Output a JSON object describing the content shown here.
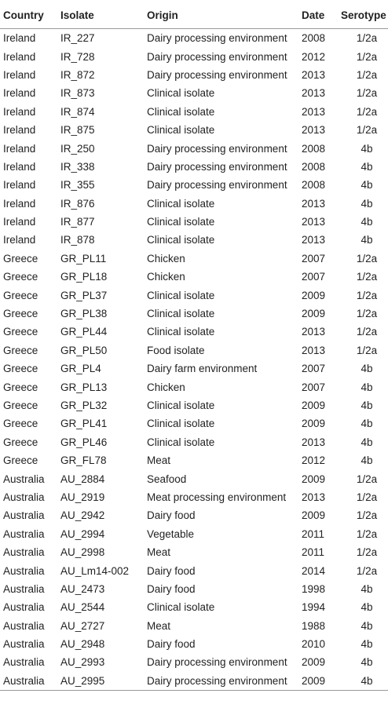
{
  "table": {
    "headers": [
      "Country",
      "Isolate",
      "Origin",
      "Date",
      "Serotype"
    ],
    "rows": [
      [
        "Ireland",
        "IR_227",
        "Dairy processing environment",
        "2008",
        "1/2a"
      ],
      [
        "Ireland",
        "IR_728",
        "Dairy processing environment",
        "2012",
        "1/2a"
      ],
      [
        "Ireland",
        "IR_872",
        "Dairy processing environment",
        "2013",
        "1/2a"
      ],
      [
        "Ireland",
        "IR_873",
        "Clinical isolate",
        "2013",
        "1/2a"
      ],
      [
        "Ireland",
        "IR_874",
        "Clinical isolate",
        "2013",
        "1/2a"
      ],
      [
        "Ireland",
        "IR_875",
        "Clinical isolate",
        "2013",
        "1/2a"
      ],
      [
        "Ireland",
        "IR_250",
        "Dairy processing environment",
        "2008",
        "4b"
      ],
      [
        "Ireland",
        "IR_338",
        "Dairy processing environment",
        "2008",
        "4b"
      ],
      [
        "Ireland",
        "IR_355",
        "Dairy processing environment",
        "2008",
        "4b"
      ],
      [
        "Ireland",
        "IR_876",
        "Clinical isolate",
        "2013",
        "4b"
      ],
      [
        "Ireland",
        "IR_877",
        "Clinical isolate",
        "2013",
        "4b"
      ],
      [
        "Ireland",
        "IR_878",
        "Clinical isolate",
        "2013",
        "4b"
      ],
      [
        "Greece",
        "GR_PL11",
        "Chicken",
        "2007",
        "1/2a"
      ],
      [
        "Greece",
        "GR_PL18",
        "Chicken",
        "2007",
        "1/2a"
      ],
      [
        "Greece",
        "GR_PL37",
        "Clinical isolate",
        "2009",
        "1/2a"
      ],
      [
        "Greece",
        "GR_PL38",
        "Clinical isolate",
        "2009",
        "1/2a"
      ],
      [
        "Greece",
        "GR_PL44",
        "Clinical isolate",
        "2013",
        "1/2a"
      ],
      [
        "Greece",
        "GR_PL50",
        "Food isolate",
        "2013",
        "1/2a"
      ],
      [
        "Greece",
        "GR_PL4",
        "Dairy farm environment",
        "2007",
        "4b"
      ],
      [
        "Greece",
        "GR_PL13",
        "Chicken",
        "2007",
        "4b"
      ],
      [
        "Greece",
        "GR_PL32",
        "Clinical isolate",
        "2009",
        "4b"
      ],
      [
        "Greece",
        "GR_PL41",
        "Clinical isolate",
        "2009",
        "4b"
      ],
      [
        "Greece",
        "GR_PL46",
        "Clinical isolate",
        "2013",
        "4b"
      ],
      [
        "Greece",
        "GR_FL78",
        "Meat",
        "2012",
        "4b"
      ],
      [
        "Australia",
        "AU_2884",
        "Seafood",
        "2009",
        "1/2a"
      ],
      [
        "Australia",
        "AU_2919",
        "Meat processing environment",
        "2013",
        "1/2a"
      ],
      [
        "Australia",
        "AU_2942",
        "Dairy food",
        "2009",
        "1/2a"
      ],
      [
        "Australia",
        "AU_2994",
        "Vegetable",
        "2011",
        "1/2a"
      ],
      [
        "Australia",
        "AU_2998",
        "Meat",
        "2011",
        "1/2a"
      ],
      [
        "Australia",
        "AU_Lm14-002",
        "Dairy food",
        "2014",
        "1/2a"
      ],
      [
        "Australia",
        "AU_2473",
        "Dairy food",
        "1998",
        "4b"
      ],
      [
        "Australia",
        "AU_2544",
        "Clinical isolate",
        "1994",
        "4b"
      ],
      [
        "Australia",
        "AU_2727",
        "Meat",
        "1988",
        "4b"
      ],
      [
        "Australia",
        "AU_2948",
        "Dairy food",
        "2010",
        "4b"
      ],
      [
        "Australia",
        "AU_2993",
        "Dairy processing environment",
        "2009",
        "4b"
      ],
      [
        "Australia",
        "AU_2995",
        "Dairy processing environment",
        "2009",
        "4b"
      ]
    ]
  }
}
